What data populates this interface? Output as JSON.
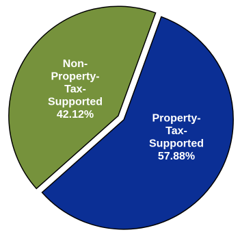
{
  "chart_data": {
    "type": "pie",
    "title": "",
    "slices": [
      {
        "label_lines": [
          "Property-",
          "Tax-",
          "Supported"
        ],
        "value": 57.88,
        "value_label": "57.88%",
        "color": "#0b2f95"
      },
      {
        "label_lines": [
          "Non-",
          "Property-",
          "Tax-",
          "Supported"
        ],
        "value": 42.12,
        "value_label": "42.12%",
        "color": "#76923c"
      }
    ],
    "start_angle_deg": 20,
    "direction": "clockwise",
    "exploded": true,
    "outline_color": "#000000",
    "legend": "none"
  }
}
